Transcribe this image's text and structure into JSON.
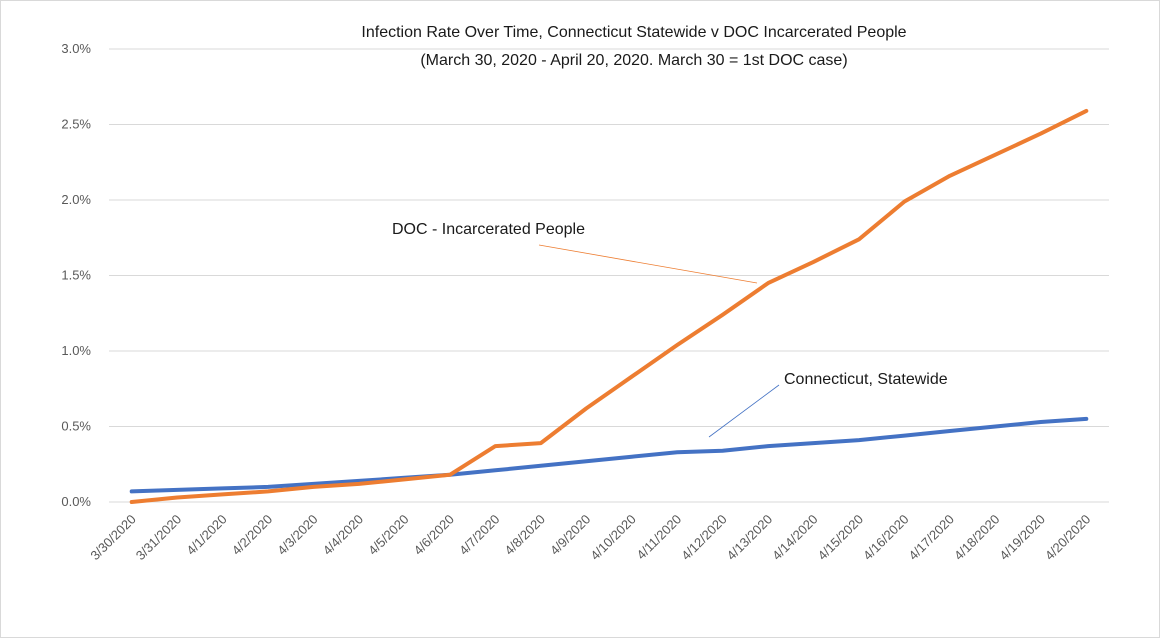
{
  "chart_data": {
    "type": "line",
    "title": "Infection Rate Over Time, Connecticut Statewide v DOC Incarcerated People",
    "subtitle": "(March 30, 2020 - April 20, 2020. March 30 = 1st DOC case)",
    "xlabel": "",
    "ylabel": "",
    "ylim": [
      0,
      3.0
    ],
    "yticks": [
      "0.0%",
      "0.5%",
      "1.0%",
      "1.5%",
      "2.0%",
      "2.5%",
      "3.0%"
    ],
    "grid": true,
    "categories": [
      "3/30/2020",
      "3/31/2020",
      "4/1/2020",
      "4/2/2020",
      "4/3/2020",
      "4/4/2020",
      "4/5/2020",
      "4/6/2020",
      "4/7/2020",
      "4/8/2020",
      "4/9/2020",
      "4/10/2020",
      "4/11/2020",
      "4/12/2020",
      "4/13/2020",
      "4/14/2020",
      "4/15/2020",
      "4/16/2020",
      "4/17/2020",
      "4/18/2020",
      "4/19/2020",
      "4/20/2020"
    ],
    "series": [
      {
        "name": "Connecticut, Statewide",
        "color": "#4472c4",
        "values": [
          0.07,
          0.08,
          0.09,
          0.1,
          0.12,
          0.14,
          0.16,
          0.18,
          0.21,
          0.24,
          0.27,
          0.3,
          0.33,
          0.34,
          0.37,
          0.39,
          0.41,
          0.44,
          0.47,
          0.5,
          0.53,
          0.55
        ]
      },
      {
        "name": "DOC - Incarcerated People",
        "color": "#ed7d31",
        "values": [
          0.0,
          0.03,
          0.05,
          0.07,
          0.1,
          0.12,
          0.15,
          0.18,
          0.37,
          0.39,
          0.62,
          0.83,
          1.04,
          1.24,
          1.45,
          1.59,
          1.74,
          1.99,
          2.16,
          2.3,
          2.44,
          2.59
        ]
      }
    ],
    "annotations": [
      {
        "text": "DOC - Incarcerated People",
        "series": "DOC - Incarcerated People",
        "points_to": "4/13/2020"
      },
      {
        "text": "Connecticut, Statewide",
        "series": "Connecticut, Statewide",
        "points_to": "4/12/2020"
      }
    ]
  }
}
